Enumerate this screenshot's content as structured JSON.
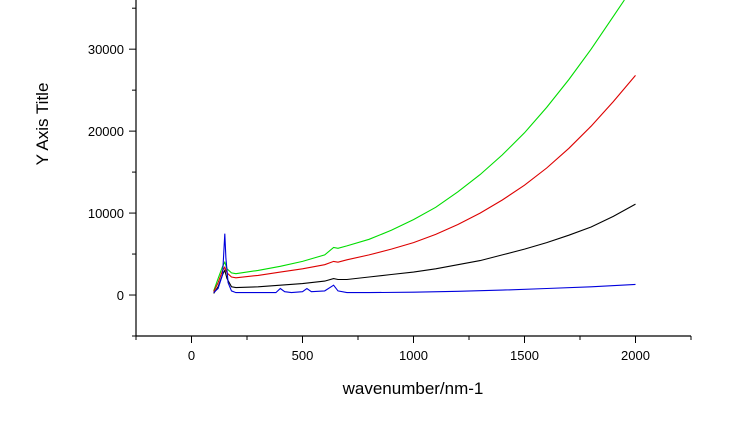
{
  "chart_data": {
    "type": "line",
    "title": "",
    "xlabel": "wavenumber/nm-1",
    "ylabel": "Y Axis Title",
    "xlim": [
      -250,
      2250
    ],
    "ylim": [
      -5000,
      36000
    ],
    "x_ticks": [
      0,
      500,
      1000,
      1500,
      2000
    ],
    "x_tick_labels": [
      "0",
      "500",
      "1000",
      "1500",
      "2000"
    ],
    "y_ticks": [
      0,
      10000,
      20000,
      30000
    ],
    "y_tick_labels": [
      "0",
      "10000",
      "20000",
      "30000"
    ],
    "grid": false,
    "legend": "none",
    "series": [
      {
        "color": "#00dd00",
        "x": [
          100,
          120,
          140,
          150,
          160,
          180,
          200,
          300,
          400,
          500,
          600,
          640,
          660,
          700,
          800,
          900,
          1000,
          1100,
          1200,
          1300,
          1400,
          1500,
          1600,
          1700,
          1800,
          1900,
          1950
        ],
        "y": [
          500,
          2000,
          3500,
          4000,
          3200,
          2700,
          2600,
          3000,
          3500,
          4100,
          4900,
          5800,
          5700,
          6000,
          6800,
          7900,
          9200,
          10700,
          12600,
          14700,
          17100,
          19800,
          22900,
          26300,
          30000,
          34000,
          36000
        ]
      },
      {
        "color": "#dd0000",
        "x": [
          100,
          120,
          140,
          150,
          160,
          180,
          200,
          300,
          400,
          500,
          600,
          640,
          660,
          700,
          800,
          900,
          1000,
          1100,
          1200,
          1300,
          1400,
          1500,
          1600,
          1700,
          1800,
          1900,
          2000
        ],
        "y": [
          400,
          1500,
          3000,
          3400,
          2700,
          2200,
          2100,
          2400,
          2800,
          3200,
          3700,
          4100,
          4000,
          4300,
          4900,
          5600,
          6400,
          7400,
          8600,
          10000,
          11600,
          13400,
          15500,
          17900,
          20600,
          23600,
          26800
        ]
      },
      {
        "color": "#000000",
        "x": [
          100,
          120,
          140,
          150,
          160,
          180,
          200,
          300,
          400,
          500,
          600,
          640,
          660,
          700,
          800,
          900,
          1000,
          1100,
          1200,
          1300,
          1400,
          1500,
          1600,
          1700,
          1800,
          1900,
          2000
        ],
        "y": [
          200,
          1000,
          2500,
          3000,
          2000,
          1000,
          900,
          1000,
          1200,
          1400,
          1700,
          2000,
          1900,
          1900,
          2200,
          2500,
          2800,
          3200,
          3700,
          4200,
          4900,
          5600,
          6400,
          7300,
          8300,
          9600,
          11100
        ]
      },
      {
        "color": "#0000dd",
        "x": [
          100,
          120,
          140,
          150,
          155,
          165,
          180,
          200,
          250,
          300,
          380,
          400,
          420,
          450,
          500,
          520,
          540,
          600,
          640,
          660,
          700,
          800,
          1000,
          1200,
          1400,
          1600,
          1800,
          2000
        ],
        "y": [
          300,
          800,
          2500,
          7500,
          4500,
          1500,
          500,
          300,
          300,
          300,
          300,
          800,
          400,
          300,
          400,
          800,
          400,
          500,
          1200,
          500,
          300,
          300,
          350,
          450,
          600,
          800,
          1000,
          1300
        ]
      }
    ]
  }
}
